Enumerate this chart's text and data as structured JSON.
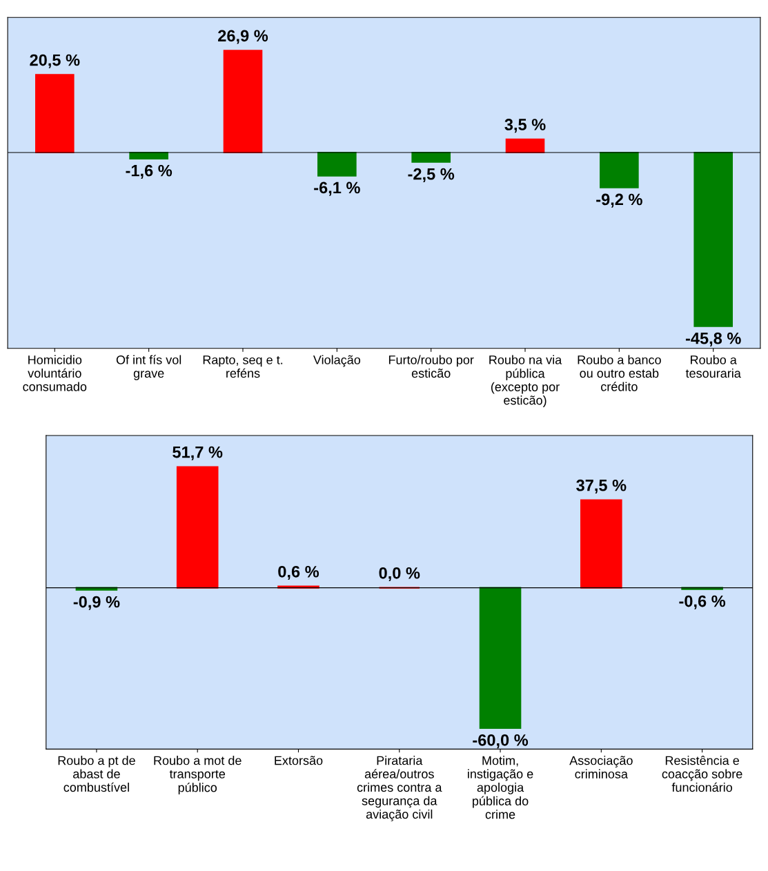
{
  "chart_data": [
    {
      "type": "bar",
      "categories": [
        "Homicidio voluntário consumado",
        "Of int fís vol grave",
        "Rapto, seq e t. reféns",
        "Violação",
        "Furto/roubo por esticão",
        "Roubo na via pública (excepto por esticão)",
        "Roubo a banco ou outro estab crédito",
        "Roubo a tesouraria"
      ],
      "values": [
        20.5,
        -1.6,
        26.9,
        -6.1,
        -2.5,
        3.5,
        -9.2,
        -45.8
      ],
      "colors": [
        "#ff0000",
        "#008000",
        "#ff0000",
        "#008000",
        "#008000",
        "#ff0000",
        "#008000",
        "#008000"
      ],
      "value_labels": [
        "20,5 %",
        "-1,6 %",
        "26,9 %",
        "-6,1 %",
        "-2,5 %",
        "3,5 %",
        "-9,2 %",
        "-45,8 %"
      ],
      "tick_labels": "x",
      "grid": false,
      "legend": false
    },
    {
      "type": "bar",
      "categories": [
        "Roubo a pt de abast de combustível",
        "Roubo a mot de transporte público",
        "Extorsão",
        "Pirataria aérea/outros crimes contra a segurança da aviação civil",
        "Motim, instigação e apologia pública do crime",
        "Associação criminosa",
        "Resistência e coacção sobre funcionário"
      ],
      "values": [
        -0.9,
        51.7,
        0.6,
        0.0,
        -60.0,
        37.5,
        -0.6
      ],
      "colors": [
        "#008000",
        "#ff0000",
        "#ff0000",
        "#ff0000",
        "#008000",
        "#ff0000",
        "#008000"
      ],
      "value_labels": [
        "-0,9 %",
        "51,7 %",
        "0,6 %",
        "0,0 %",
        "-60,0 %",
        "37,5 %",
        "-0,6 %"
      ],
      "tick_labels": "x",
      "grid": false,
      "legend": false
    }
  ]
}
